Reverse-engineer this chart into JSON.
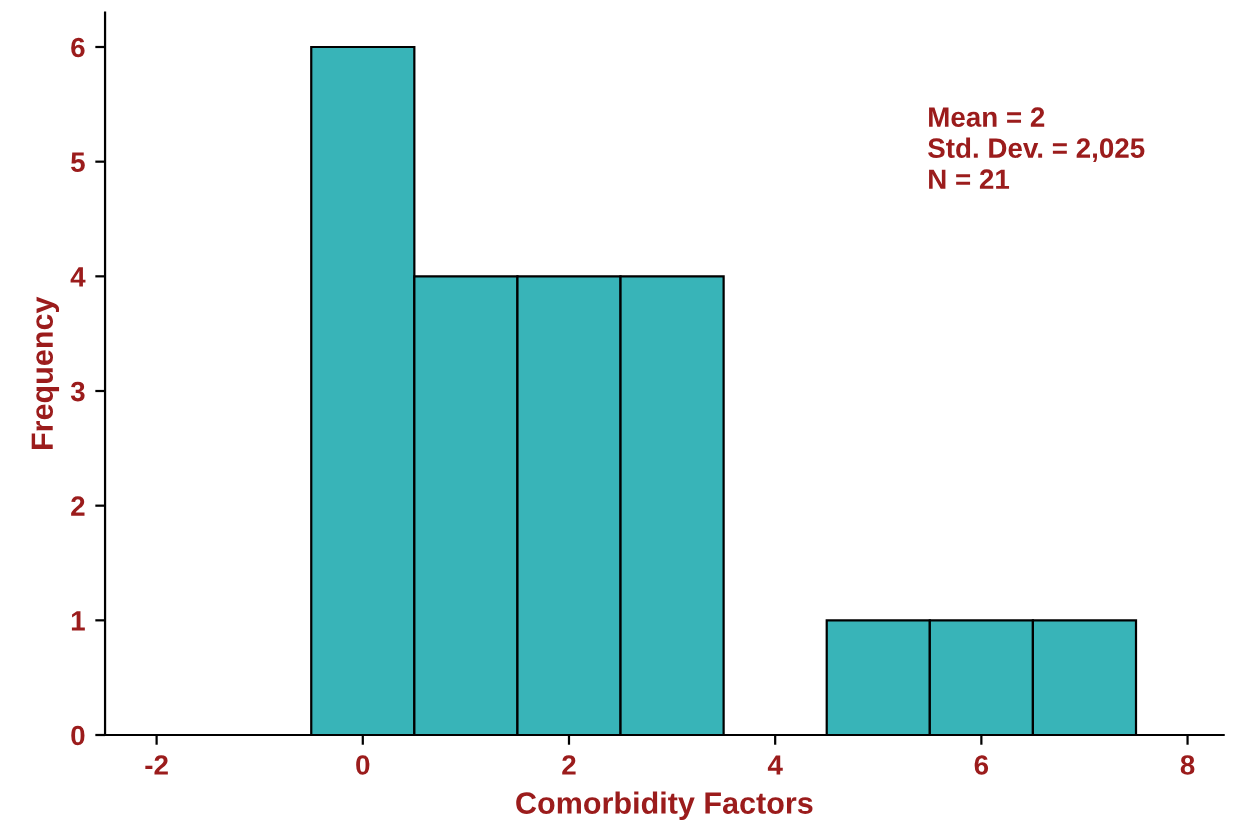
{
  "chart_data": {
    "type": "histogram",
    "xlabel": "Comorbidity Factors",
    "ylabel": "Frequency",
    "bins": [
      -0.5,
      0.5,
      1.5,
      2.5,
      3.5,
      4.5,
      5.5,
      6.5,
      7.5
    ],
    "values": [
      6,
      4,
      4,
      4,
      0,
      1,
      1,
      1
    ],
    "color": "#38b4b8",
    "xlim": [
      -2.5,
      8.35
    ],
    "xticks": [
      -2,
      0,
      2,
      4,
      6,
      8
    ],
    "ylim": [
      0,
      6.3
    ],
    "yticks": [
      0,
      1,
      2,
      3,
      4,
      5,
      6
    ],
    "grid": false,
    "legend": false,
    "annotations": [
      "Mean = 2",
      "Std. Dev. = 2,025",
      "N = 21"
    ]
  }
}
